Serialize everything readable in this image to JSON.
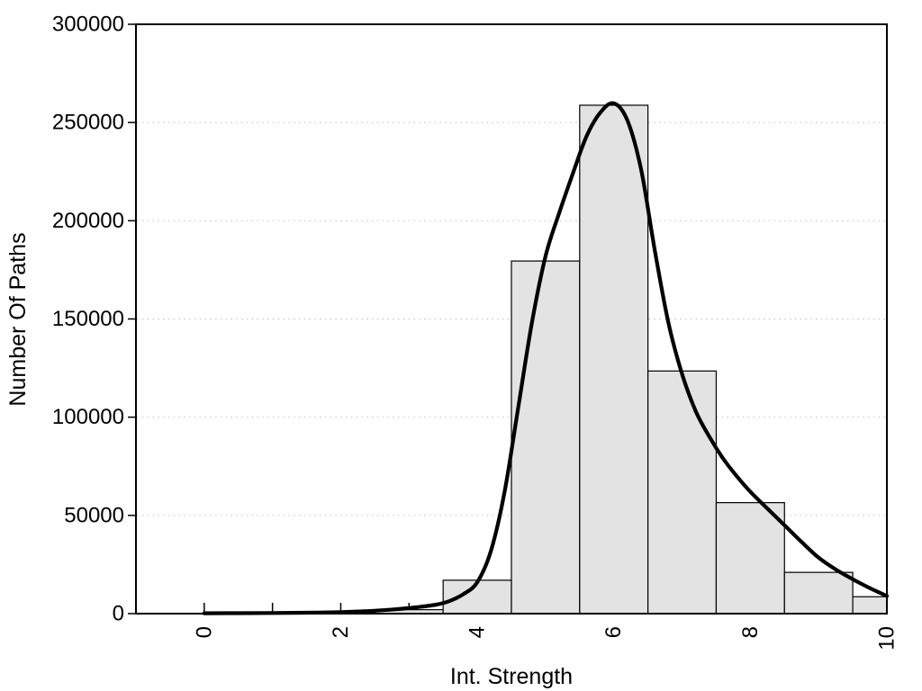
{
  "chart_data": {
    "type": "bar",
    "subtype": "histogram-with-density-curve",
    "title": "",
    "xlabel": "Int. Strength",
    "ylabel": "Number Of Paths",
    "xlim": [
      -1,
      10
    ],
    "ylim": [
      0,
      300000
    ],
    "x_ticks": [
      0,
      1,
      2,
      3,
      4,
      5,
      6,
      7,
      8,
      9,
      10
    ],
    "x_tick_labels": {
      "0": "0",
      "2": "2",
      "4": "4",
      "6": "6",
      "8": "8",
      "10": "10"
    },
    "y_ticks": [
      0,
      50000,
      100000,
      150000,
      200000,
      250000,
      300000
    ],
    "y_tick_labels": [
      "0",
      "50000",
      "100000",
      "150000",
      "200000",
      "250000",
      "300000"
    ],
    "grid": "horizontal dotted at 50000..250000",
    "legend_position": "none",
    "bins": [
      {
        "from": 2.5,
        "to": 3.5,
        "count": 2000
      },
      {
        "from": 3.5,
        "to": 4.5,
        "count": 17000
      },
      {
        "from": 4.5,
        "to": 5.5,
        "count": 179500
      },
      {
        "from": 5.5,
        "to": 6.5,
        "count": 258800
      },
      {
        "from": 6.5,
        "to": 7.5,
        "count": 123500
      },
      {
        "from": 7.5,
        "to": 8.5,
        "count": 56500
      },
      {
        "from": 8.5,
        "to": 9.5,
        "count": 21000
      },
      {
        "from": 9.5,
        "to": 10.0,
        "count": 8600
      }
    ],
    "density_curve": {
      "x": [
        0,
        0.5,
        1,
        1.5,
        2,
        2.4,
        2.8,
        3.1,
        3.4,
        3.6,
        3.8,
        4.0,
        4.2,
        4.4,
        4.6,
        4.8,
        5.0,
        5.2,
        5.4,
        5.6,
        5.8,
        6.0,
        6.2,
        6.4,
        6.6,
        6.8,
        7.0,
        7.2,
        7.4,
        7.6,
        7.8,
        8.0,
        8.25,
        8.5,
        8.75,
        9.0,
        9.25,
        9.5,
        9.75,
        10.0
      ],
      "y": [
        200,
        250,
        300,
        450,
        800,
        1300,
        2200,
        3200,
        4600,
        6500,
        10000,
        16000,
        32000,
        62000,
        105000,
        148000,
        182000,
        204000,
        224000,
        243000,
        255000,
        259800,
        251000,
        226000,
        185000,
        148000,
        122000,
        103000,
        90000,
        79000,
        70000,
        62000,
        53500,
        45000,
        36500,
        28500,
        22500,
        17500,
        13000,
        9000
      ]
    },
    "colors": {
      "bar_fill": "#e3e3e3",
      "bar_stroke": "#000000",
      "curve": "#000000",
      "grid": "#c9c9c9",
      "axis": "#000000",
      "background": "#ffffff"
    }
  }
}
